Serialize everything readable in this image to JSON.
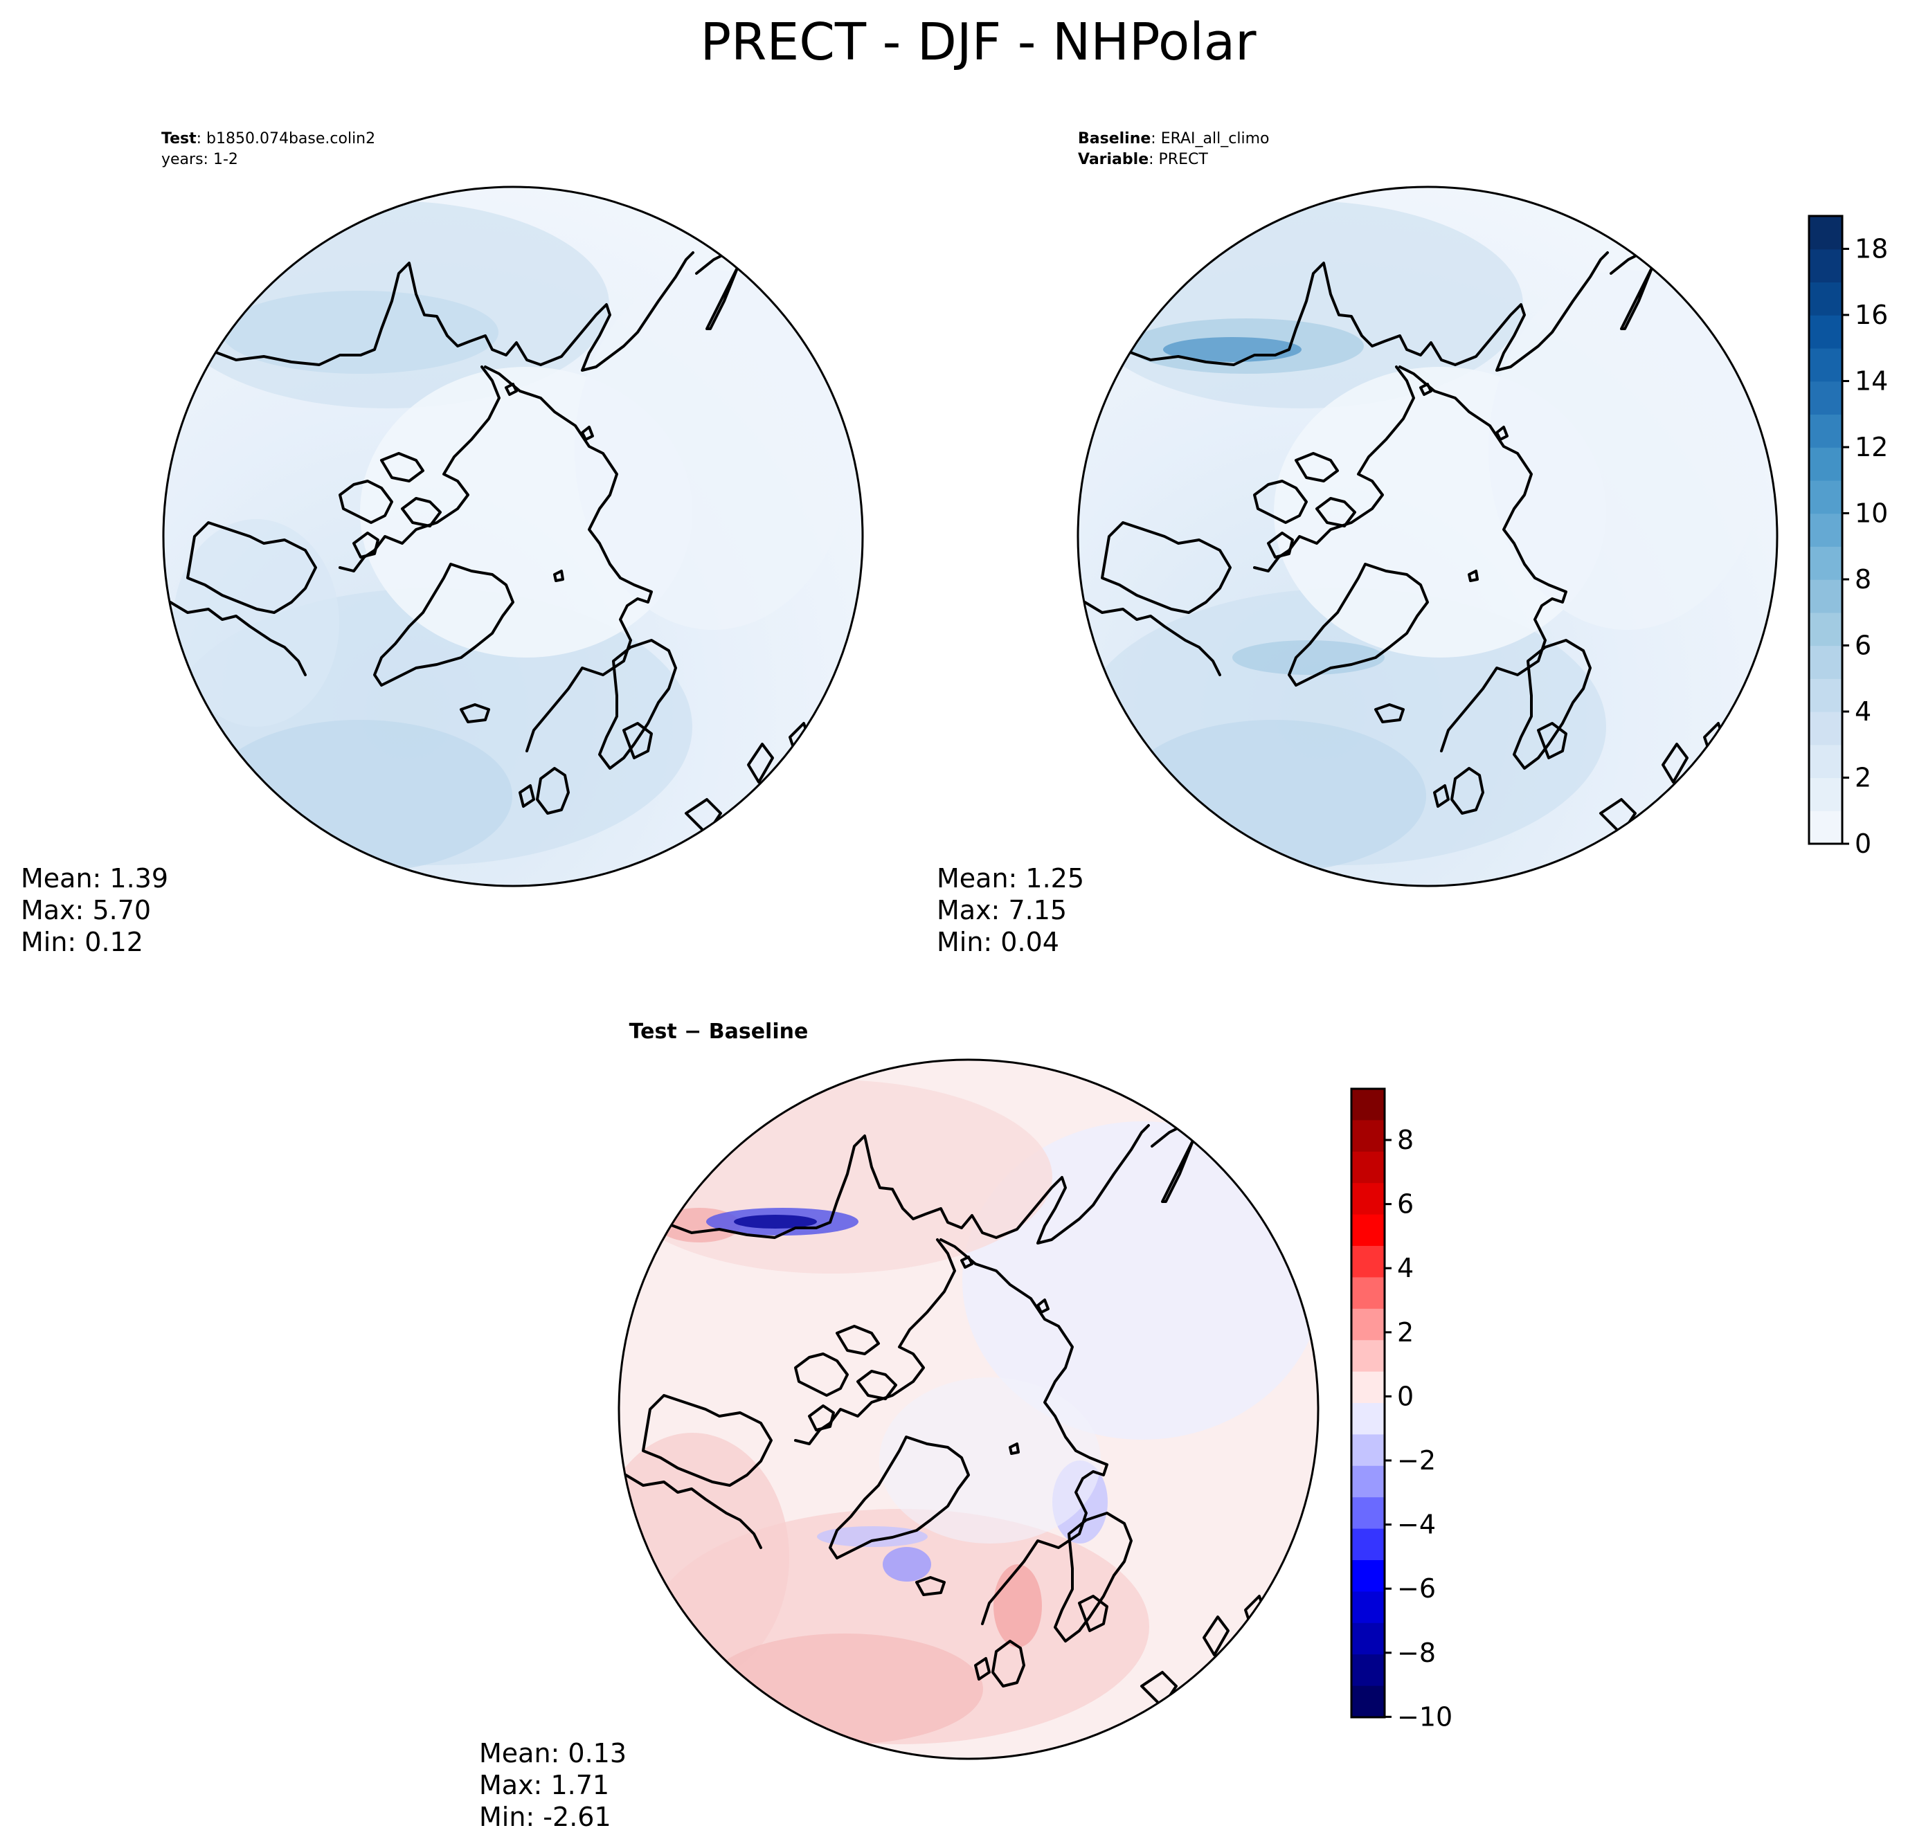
{
  "figure": {
    "title": "PRECT - DJF - NHPolar"
  },
  "test_panel": {
    "header_label_1": "Test",
    "header_value_1": "b1850.074base.colin2",
    "header_line_2": "years: 1-2",
    "mean_label": "Mean:  1.39",
    "max_label": "Max:  5.70",
    "min_label": "Min:  0.12"
  },
  "baseline_panel": {
    "header_label_1": "Baseline",
    "header_value_1": "ERAI_all_climo",
    "header_label_2": "Variable",
    "header_value_2": "PRECT",
    "mean_label": "Mean:  1.25",
    "max_label": "Max:  7.15",
    "min_label": "Min:  0.04"
  },
  "diff_panel": {
    "title": "Test − Baseline",
    "mean_label": "Mean:  0.13",
    "max_label": "Max:  1.71",
    "min_label": "Min: -2.61"
  },
  "colorbar_main": {
    "ticks": [
      "0",
      "2",
      "4",
      "6",
      "8",
      "10",
      "12",
      "14",
      "16",
      "18"
    ],
    "colors": [
      "#f1f6fc",
      "#e6f0f9",
      "#dbe9f6",
      "#d0e1f2",
      "#c3dbee",
      "#b4d3e9",
      "#a2cbe2",
      "#8fc0dd",
      "#7ab6d9",
      "#65a9d3",
      "#539ecd",
      "#4292c6",
      "#3282be",
      "#2371b4",
      "#1664ab",
      "#0b559f",
      "#08478c",
      "#08397a",
      "#082d66"
    ]
  },
  "colorbar_diff": {
    "ticks": [
      "8",
      "6",
      "4",
      "2",
      "0",
      "−2",
      "−4",
      "−6",
      "−8",
      "−10"
    ],
    "colors": [
      "#7f0000",
      "#a50000",
      "#c40000",
      "#e30000",
      "#ff0000",
      "#ff3535",
      "#ff6a6a",
      "#ff9a9a",
      "#ffc4c4",
      "#ffe9e9",
      "#e9e9ff",
      "#c4c4ff",
      "#9a9aff",
      "#6a6aff",
      "#3535ff",
      "#0000ff",
      "#0000d9",
      "#0000b3",
      "#00008a",
      "#000066"
    ]
  }
}
